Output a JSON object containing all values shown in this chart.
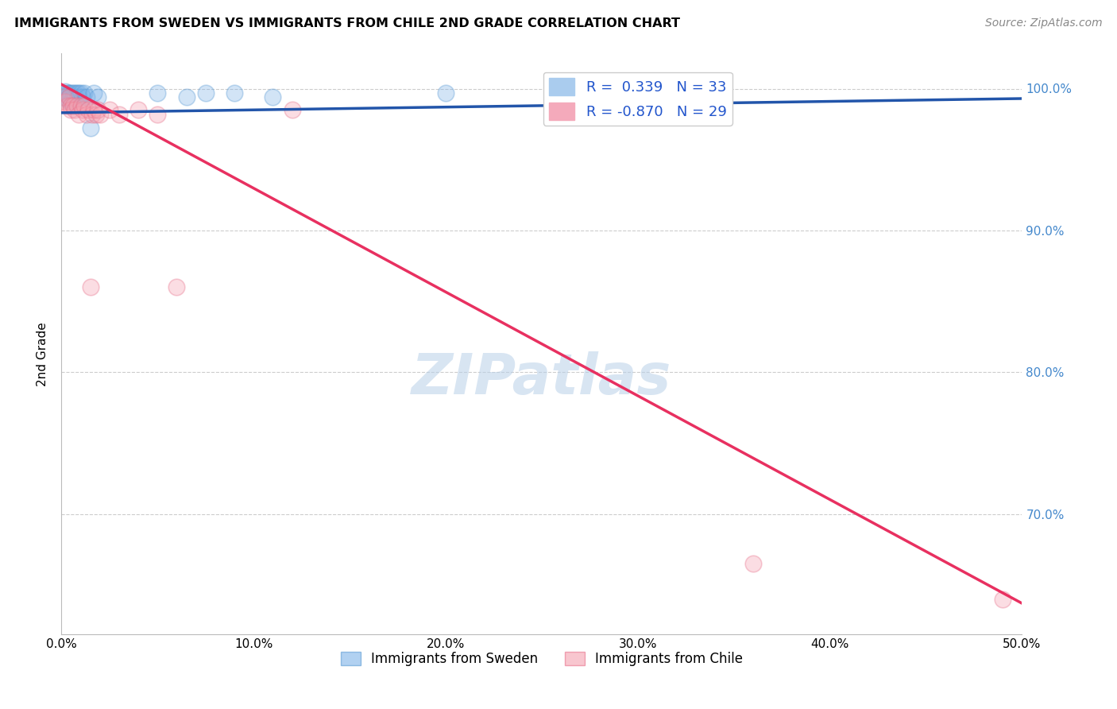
{
  "title": "IMMIGRANTS FROM SWEDEN VS IMMIGRANTS FROM CHILE 2ND GRADE CORRELATION CHART",
  "source": "Source: ZipAtlas.com",
  "ylabel": "2nd Grade",
  "xlim": [
    0.0,
    0.5
  ],
  "ylim": [
    0.615,
    1.025
  ],
  "sweden_R": 0.339,
  "sweden_N": 33,
  "chile_R": -0.87,
  "chile_N": 29,
  "sweden_color": "#7EB3E8",
  "chile_color": "#F4A0B0",
  "sweden_edge_color": "#5A9AD4",
  "chile_edge_color": "#E8708A",
  "sweden_line_color": "#2255AA",
  "chile_line_color": "#E83060",
  "legend_label_sweden": "Immigrants from Sweden",
  "legend_label_chile": "Immigrants from Chile",
  "sweden_points_x": [
    0.001,
    0.002,
    0.002,
    0.003,
    0.003,
    0.004,
    0.004,
    0.004,
    0.005,
    0.005,
    0.005,
    0.006,
    0.006,
    0.006,
    0.007,
    0.007,
    0.008,
    0.008,
    0.009,
    0.009,
    0.01,
    0.011,
    0.012,
    0.013,
    0.015,
    0.017,
    0.019,
    0.05,
    0.065,
    0.075,
    0.09,
    0.11,
    0.2
  ],
  "sweden_points_y": [
    0.997,
    0.998,
    0.994,
    0.997,
    0.993,
    0.997,
    0.994,
    0.991,
    0.997,
    0.994,
    0.991,
    0.997,
    0.994,
    0.991,
    0.997,
    0.994,
    0.997,
    0.993,
    0.997,
    0.994,
    0.997,
    0.994,
    0.997,
    0.994,
    0.972,
    0.997,
    0.994,
    0.997,
    0.994,
    0.997,
    0.997,
    0.994,
    0.997
  ],
  "chile_points_x": [
    0.001,
    0.002,
    0.003,
    0.004,
    0.005,
    0.005,
    0.006,
    0.007,
    0.008,
    0.009,
    0.01,
    0.011,
    0.012,
    0.013,
    0.014,
    0.015,
    0.016,
    0.017,
    0.018,
    0.019,
    0.02,
    0.025,
    0.03,
    0.04,
    0.05,
    0.06,
    0.12,
    0.36,
    0.49
  ],
  "chile_points_y": [
    0.994,
    0.991,
    0.988,
    0.994,
    0.988,
    0.985,
    0.988,
    0.985,
    0.988,
    0.982,
    0.988,
    0.985,
    0.988,
    0.982,
    0.985,
    0.86,
    0.982,
    0.985,
    0.982,
    0.985,
    0.982,
    0.985,
    0.982,
    0.985,
    0.982,
    0.86,
    0.985,
    0.665,
    0.64
  ],
  "sweden_line_x": [
    0.0,
    0.5
  ],
  "sweden_line_y": [
    0.983,
    0.993
  ],
  "chile_line_x": [
    0.0,
    0.5
  ],
  "chile_line_y": [
    1.003,
    0.637
  ],
  "watermark": "ZIPatlas",
  "background_color": "#FFFFFF",
  "grid_color": "#CCCCCC",
  "yticks": [
    0.7,
    0.8,
    0.9,
    1.0
  ],
  "ytick_labels": [
    "70.0%",
    "80.0%",
    "90.0%",
    "100.0%"
  ],
  "xticks": [
    0.0,
    0.1,
    0.2,
    0.3,
    0.4,
    0.5
  ],
  "xtick_labels": [
    "0.0%",
    "10.0%",
    "20.0%",
    "30.0%",
    "40.0%",
    "50.0%"
  ]
}
